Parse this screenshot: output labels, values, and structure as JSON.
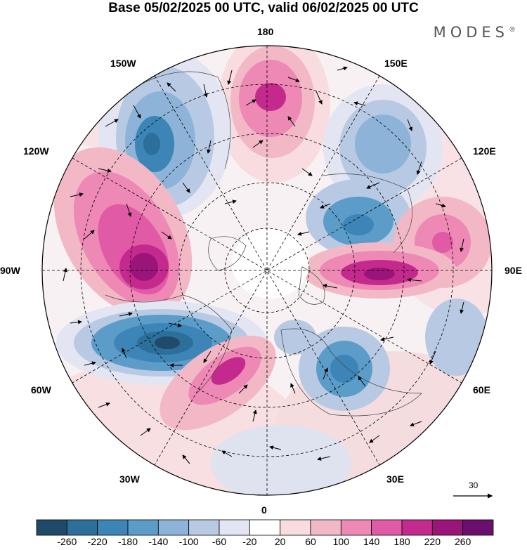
{
  "title": "Base 05/02/2025 00 UTC, valid 06/02/2025 00 UTC",
  "brand": "MODES",
  "brand_mark": "®",
  "longitude_labels": {
    "top": "180",
    "lon150W": "150W",
    "lon150E": "150E",
    "lon120W": "120W",
    "lon120E": "120E",
    "lon90W": "90W",
    "lon90E": "90E",
    "lon60W": "60W",
    "lon60E": "60E",
    "lon30W": "30W",
    "lon30E": "30E",
    "bottom": "0"
  },
  "reference_vector": {
    "label": "30"
  },
  "colorbar": {
    "ticks": [
      "-260",
      "-220",
      "-180",
      "-140",
      "-100",
      "-60",
      "-20",
      "20",
      "60",
      "100",
      "140",
      "180",
      "220",
      "260"
    ],
    "colors": [
      "#1f4a69",
      "#2c6f9b",
      "#3d85b6",
      "#5b9cc8",
      "#8db4d8",
      "#b8cae3",
      "#e3e6f2",
      "#ffffff",
      "#f9dcdf",
      "#f3b8c6",
      "#ee88b4",
      "#e05aa5",
      "#c42a8e",
      "#9a1479",
      "#6a0f6e"
    ]
  },
  "colors": {
    "map_boundary": "#000000",
    "graticule": "#000000"
  }
}
